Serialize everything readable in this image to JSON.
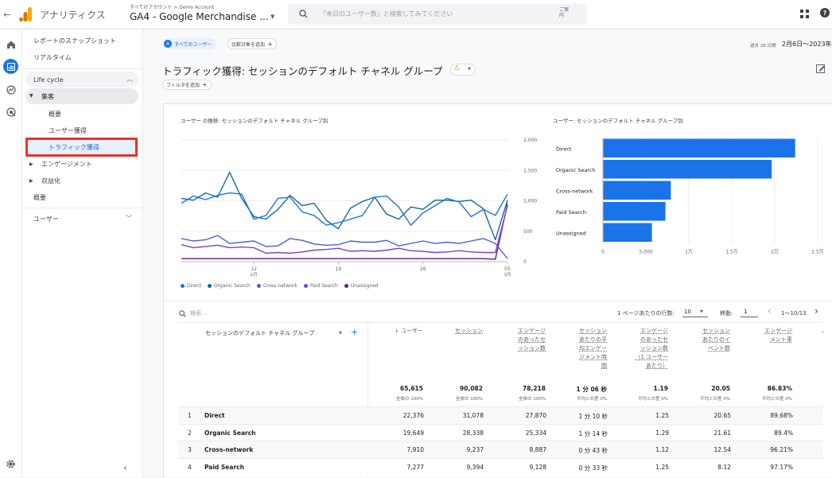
{
  "app": {
    "title": "アナリティクス",
    "breadcrumb": "すべてのアカウント > Demo Account",
    "property": "GA4 - Google Merchandise ...",
    "search_placeholder": "「本日のユーザー数」と検索してみてください",
    "search_hint": "ご案内"
  },
  "sidenav": {
    "items": [
      "レポートのスナップショット",
      "リアルタイム"
    ],
    "section": "Life cycle",
    "group": "集客",
    "subitems": [
      "概要",
      "ユーザー獲得",
      "トラフィック獲得"
    ],
    "others": [
      "エンゲージメント",
      "収益化",
      "概要"
    ],
    "users_section": "ユーザー"
  },
  "header": {
    "all_users_chip": "すべてのユーザー",
    "add_compare": "比較対象を追加",
    "date_prefix": "過去 28 日間",
    "date_range": "2月6日〜2023年",
    "title": "トラフィック獲得: セッションのデフォルト チャネル グループ",
    "add_filter": "フィルタを追加"
  },
  "line_chart": {
    "title": "ユーザー の推移: セッションのデフォルト チャネル グループ別",
    "y_ticks": [
      "2,000",
      "1,500",
      "1,000",
      "500",
      "0"
    ],
    "x_ticks": [
      {
        "label": "12",
        "sub": "2月"
      },
      {
        "label": "19",
        "sub": ""
      },
      {
        "label": "26",
        "sub": ""
      },
      {
        "label": "05",
        "sub": "3月"
      }
    ],
    "legend": [
      {
        "name": "Direct",
        "color": "#1a73e8"
      },
      {
        "name": "Organic Search",
        "color": "#12679b"
      },
      {
        "name": "Cross-network",
        "color": "#4a5ee0"
      },
      {
        "name": "Paid Search",
        "color": "#7b3fd6"
      },
      {
        "name": "Unassigned",
        "color": "#5b1a8a"
      }
    ]
  },
  "chart_data": [
    {
      "type": "line",
      "title": "ユーザー の推移: セッションのデフォルト チャネル グループ別",
      "x": [
        "2/6",
        "2/7",
        "2/8",
        "2/9",
        "2/10",
        "2/11",
        "2/12",
        "2/13",
        "2/14",
        "2/15",
        "2/16",
        "2/17",
        "2/18",
        "2/19",
        "2/20",
        "2/21",
        "2/22",
        "2/23",
        "2/24",
        "2/25",
        "2/26",
        "2/27",
        "2/28",
        "3/1",
        "3/2",
        "3/3",
        "3/4",
        "3/5"
      ],
      "ylim": [
        0,
        2000
      ],
      "series": [
        {
          "name": "Direct",
          "values": [
            960,
            1080,
            1020,
            1090,
            1130,
            1110,
            700,
            760,
            1040,
            1060,
            820,
            760,
            600,
            640,
            700,
            760,
            1060,
            1080,
            900,
            600,
            800,
            920,
            1040,
            980,
            740,
            860,
            760,
            1110
          ]
        },
        {
          "name": "Organic Search",
          "values": [
            1040,
            1010,
            1130,
            1060,
            1470,
            1040,
            740,
            700,
            860,
            1090,
            920,
            960,
            680,
            540,
            880,
            990,
            1060,
            780,
            700,
            900,
            860,
            1010,
            1010,
            990,
            1010,
            870,
            360,
            1010
          ]
        },
        {
          "name": "Cross-network",
          "values": [
            380,
            340,
            360,
            430,
            300,
            320,
            340,
            250,
            260,
            380,
            350,
            290,
            270,
            280,
            340,
            320,
            320,
            350,
            260,
            300,
            340,
            300,
            320,
            300,
            340,
            380,
            300,
            50
          ]
        },
        {
          "name": "Paid Search",
          "values": [
            280,
            230,
            250,
            270,
            230,
            240,
            230,
            140,
            150,
            140,
            160,
            190,
            200,
            220,
            170,
            180,
            170,
            190,
            220,
            180,
            170,
            150,
            160,
            180,
            160,
            150,
            150,
            920
          ]
        },
        {
          "name": "Unassigned",
          "values": [
            50,
            50,
            50,
            50,
            50,
            50,
            50,
            50,
            50,
            50,
            50,
            50,
            50,
            50,
            50,
            50,
            50,
            50,
            50,
            50,
            50,
            50,
            50,
            50,
            50,
            50,
            40,
            950
          ]
        }
      ]
    },
    {
      "type": "bar",
      "title": "ユーザー: セッションのデフォルト チャネル グループ別",
      "categories": [
        "Direct",
        "Organic Search",
        "Cross-network",
        "Paid Search",
        "Unassigned"
      ],
      "values": [
        22376,
        19649,
        7910,
        7277,
        5700
      ],
      "x_ticks": [
        "0",
        "5,000",
        "1万",
        "1.5万",
        "2万",
        "2.5万"
      ],
      "xlim": [
        0,
        25000
      ],
      "color": "#1a73e8"
    }
  ],
  "table": {
    "search_placeholder": "検索...",
    "rows_per_page_label": "1 ページあたりの行数:",
    "rows_per_page": "10",
    "goto_label": "移動:",
    "goto_value": "1",
    "pagination": "1〜10/13",
    "dimension_header": "セッションのデフォルト チャネル グループ",
    "columns": [
      {
        "label": "↓ ユーザー",
        "total": "65,615",
        "sub": "全体の 100%"
      },
      {
        "label": "セッション",
        "total": "90,082",
        "sub": "全体の 100%"
      },
      {
        "label": "エンゲージ\nのあったセ\nッション数",
        "total": "78,218",
        "sub": "全体の 100%"
      },
      {
        "label": "セッション\nあたりの平\n均エンゲー\nジメント時\n間",
        "total": "1 分 06 秒",
        "sub": "平均との差 0%"
      },
      {
        "label": "エンゲージ\nのあったセ\nッション数\n（1 ユーザー\nあたり）",
        "total": "1.19",
        "sub": "平均との差 0%"
      },
      {
        "label": "セッション\nあたりのイ\nベント数",
        "total": "20.05",
        "sub": "平均との差 0%"
      },
      {
        "label": "エンゲージ\nメント率",
        "total": "86.83%",
        "sub": "平均との差 0%"
      }
    ],
    "rows": [
      {
        "rank": "1",
        "name": "Direct",
        "values": [
          "22,376",
          "31,078",
          "27,870",
          "1 分 10 秒",
          "1.25",
          "20.65",
          "89.68%"
        ]
      },
      {
        "rank": "2",
        "name": "Organic Search",
        "values": [
          "19,649",
          "28,338",
          "25,334",
          "1 分 14 秒",
          "1.29",
          "21.61",
          "89.4%"
        ]
      },
      {
        "rank": "3",
        "name": "Cross-network",
        "values": [
          "7,910",
          "9,237",
          "8,887",
          "0 分 43 秒",
          "1.12",
          "12.54",
          "96.21%"
        ]
      },
      {
        "rank": "4",
        "name": "Paid Search",
        "values": [
          "7,277",
          "9,394",
          "9,128",
          "0 分 33 秒",
          "1.25",
          "8.12",
          "97.17%"
        ]
      }
    ]
  }
}
